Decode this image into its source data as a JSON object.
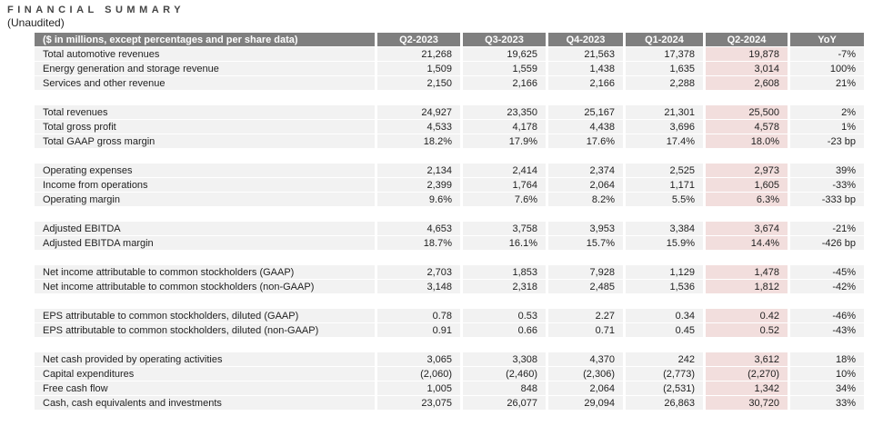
{
  "title": "FINANCIAL SUMMARY",
  "subtitle": "(Unaudited)",
  "colors": {
    "header_bg": "#7f7f7f",
    "header_text": "#ffffff",
    "row_bg": "#f2f2f2",
    "highlight_bg": "#f2dedd",
    "text": "#1f1f1f"
  },
  "table": {
    "header_label": "($ in millions, except percentages and per share data)",
    "columns": [
      "Q2-2023",
      "Q3-2023",
      "Q4-2023",
      "Q1-2024",
      "Q2-2024",
      "YoY"
    ],
    "highlight_column": "Q2-2024",
    "sections": [
      {
        "rows": [
          {
            "label": "Total automotive revenues",
            "values": [
              "21,268",
              "19,625",
              "21,563",
              "17,378",
              "19,878",
              "-7%"
            ]
          },
          {
            "label": "Energy generation and storage revenue",
            "values": [
              "1,509",
              "1,559",
              "1,438",
              "1,635",
              "3,014",
              "100%"
            ]
          },
          {
            "label": "Services and other revenue",
            "values": [
              "2,150",
              "2,166",
              "2,166",
              "2,288",
              "2,608",
              "21%"
            ]
          }
        ]
      },
      {
        "rows": [
          {
            "label": "Total revenues",
            "values": [
              "24,927",
              "23,350",
              "25,167",
              "21,301",
              "25,500",
              "2%"
            ]
          },
          {
            "label": "Total gross profit",
            "values": [
              "4,533",
              "4,178",
              "4,438",
              "3,696",
              "4,578",
              "1%"
            ]
          },
          {
            "label": "Total GAAP gross margin",
            "values": [
              "18.2%",
              "17.9%",
              "17.6%",
              "17.4%",
              "18.0%",
              "-23 bp"
            ]
          }
        ]
      },
      {
        "rows": [
          {
            "label": "Operating expenses",
            "values": [
              "2,134",
              "2,414",
              "2,374",
              "2,525",
              "2,973",
              "39%"
            ]
          },
          {
            "label": "Income from operations",
            "values": [
              "2,399",
              "1,764",
              "2,064",
              "1,171",
              "1,605",
              "-33%"
            ]
          },
          {
            "label": "Operating margin",
            "values": [
              "9.6%",
              "7.6%",
              "8.2%",
              "5.5%",
              "6.3%",
              "-333 bp"
            ]
          }
        ]
      },
      {
        "rows": [
          {
            "label": "Adjusted EBITDA",
            "values": [
              "4,653",
              "3,758",
              "3,953",
              "3,384",
              "3,674",
              "-21%"
            ]
          },
          {
            "label": "Adjusted EBITDA margin",
            "values": [
              "18.7%",
              "16.1%",
              "15.7%",
              "15.9%",
              "14.4%",
              "-426 bp"
            ]
          }
        ]
      },
      {
        "rows": [
          {
            "label": "Net income attributable to common stockholders (GAAP)",
            "values": [
              "2,703",
              "1,853",
              "7,928",
              "1,129",
              "1,478",
              "-45%"
            ]
          },
          {
            "label": "Net income attributable to common stockholders (non-GAAP)",
            "values": [
              "3,148",
              "2,318",
              "2,485",
              "1,536",
              "1,812",
              "-42%"
            ]
          }
        ]
      },
      {
        "rows": [
          {
            "label": "EPS attributable to common stockholders, diluted (GAAP)",
            "values": [
              "0.78",
              "0.53",
              "2.27",
              "0.34",
              "0.42",
              "-46%"
            ]
          },
          {
            "label": "EPS attributable to common stockholders, diluted (non-GAAP)",
            "values": [
              "0.91",
              "0.66",
              "0.71",
              "0.45",
              "0.52",
              "-43%"
            ]
          }
        ]
      },
      {
        "rows": [
          {
            "label": "Net cash provided by operating activities",
            "values": [
              "3,065",
              "3,308",
              "4,370",
              "242",
              "3,612",
              "18%"
            ]
          },
          {
            "label": "Capital expenditures",
            "values": [
              "(2,060)",
              "(2,460)",
              "(2,306)",
              "(2,773)",
              "(2,270)",
              "10%"
            ]
          },
          {
            "label": "Free cash flow",
            "values": [
              "1,005",
              "848",
              "2,064",
              "(2,531)",
              "1,342",
              "34%"
            ]
          },
          {
            "label": "Cash, cash equivalents and investments",
            "values": [
              "23,075",
              "26,077",
              "29,094",
              "26,863",
              "30,720",
              "33%"
            ]
          }
        ]
      }
    ]
  }
}
